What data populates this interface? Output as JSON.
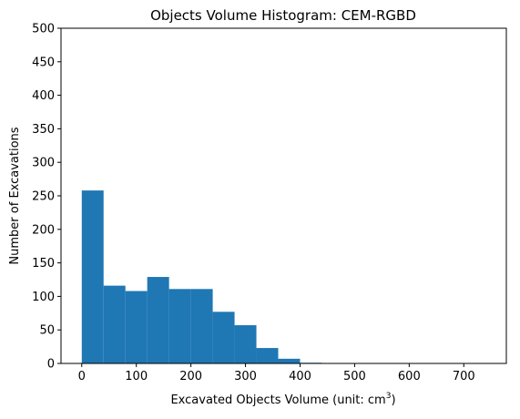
{
  "chart_data": {
    "type": "bar",
    "title": "Objects Volume Histogram: CEM-RGBD",
    "xlabel": "Excavated Objects Volume (unit: cm",
    "xlabel_superscript": "3",
    "xlabel_suffix": ")",
    "ylabel": "Number of Excavations",
    "bar_color": "#1f77b4",
    "xlim": [
      -38,
      778
    ],
    "ylim": [
      0,
      500
    ],
    "xticks": [
      0,
      100,
      200,
      300,
      400,
      500,
      600,
      700
    ],
    "yticks": [
      0,
      50,
      100,
      150,
      200,
      250,
      300,
      350,
      400,
      450,
      500
    ],
    "bin_edges": [
      0,
      40,
      80,
      120,
      160,
      200,
      240,
      280,
      320,
      360,
      400,
      440
    ],
    "values": [
      258,
      116,
      108,
      129,
      111,
      111,
      77,
      57,
      23,
      7,
      1
    ]
  }
}
